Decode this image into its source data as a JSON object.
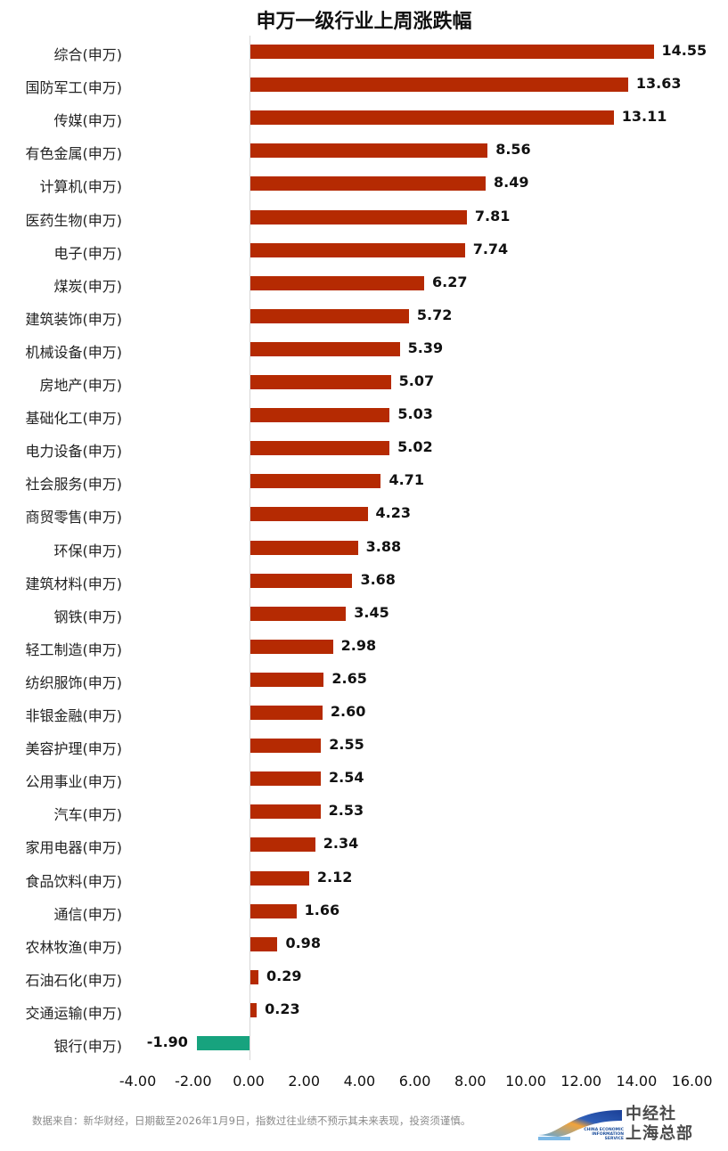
{
  "title": "申万一级行业上周涨跌幅",
  "colors": {
    "positive": "#b52a02",
    "negative": "#17a37e",
    "zero_line": "#d6d6d6"
  },
  "axis": {
    "ticks": [
      "-4.00",
      "-2.00",
      "0.00",
      "2.00",
      "4.00",
      "6.00",
      "8.00",
      "10.00",
      "12.00",
      "14.00",
      "16.00"
    ]
  },
  "footer": {
    "note": "数据来自：新华财经，日期截至2026年1月9日，指数过往业绩不预示其未来表现，投资须谨慎。",
    "logo_line1": "中经社",
    "logo_line2": "上海总部",
    "logo_en": "CHINA ECONOMIC INFORMATION SERVICE"
  },
  "chart_data": {
    "type": "bar",
    "orientation": "horizontal",
    "title": "申万一级行业上周涨跌幅",
    "xlabel": "",
    "ylabel": "",
    "xlim": [
      -4,
      16
    ],
    "grid": false,
    "legend": null,
    "categories": [
      "综合(申万)",
      "国防军工(申万)",
      "传媒(申万)",
      "有色金属(申万)",
      "计算机(申万)",
      "医药生物(申万)",
      "电子(申万)",
      "煤炭(申万)",
      "建筑装饰(申万)",
      "机械设备(申万)",
      "房地产(申万)",
      "基础化工(申万)",
      "电力设备(申万)",
      "社会服务(申万)",
      "商贸零售(申万)",
      "环保(申万)",
      "建筑材料(申万)",
      "钢铁(申万)",
      "轻工制造(申万)",
      "纺织服饰(申万)",
      "非银金融(申万)",
      "美容护理(申万)",
      "公用事业(申万)",
      "汽车(申万)",
      "家用电器(申万)",
      "食品饮料(申万)",
      "通信(申万)",
      "农林牧渔(申万)",
      "石油石化(申万)",
      "交通运输(申万)",
      "银行(申万)"
    ],
    "values": [
      14.55,
      13.63,
      13.11,
      8.56,
      8.49,
      7.81,
      7.74,
      6.27,
      5.72,
      5.39,
      5.07,
      5.03,
      5.02,
      4.71,
      4.23,
      3.88,
      3.68,
      3.45,
      2.98,
      2.65,
      2.6,
      2.55,
      2.54,
      2.53,
      2.34,
      2.12,
      1.66,
      0.98,
      0.29,
      0.23,
      -1.9
    ],
    "labels": [
      "14.55",
      "13.63",
      "13.11",
      "8.56",
      "8.49",
      "7.81",
      "7.74",
      "6.27",
      "5.72",
      "5.39",
      "5.07",
      "5.03",
      "5.02",
      "4.71",
      "4.23",
      "3.88",
      "3.68",
      "3.45",
      "2.98",
      "2.65",
      "2.60",
      "2.55",
      "2.54",
      "2.53",
      "2.34",
      "2.12",
      "1.66",
      "0.98",
      "0.29",
      "0.23",
      "-1.90"
    ],
    "tick_labels": [
      "-4.00",
      "-2.00",
      "0.00",
      "2.00",
      "4.00",
      "6.00",
      "8.00",
      "10.00",
      "12.00",
      "14.00",
      "16.00"
    ]
  }
}
